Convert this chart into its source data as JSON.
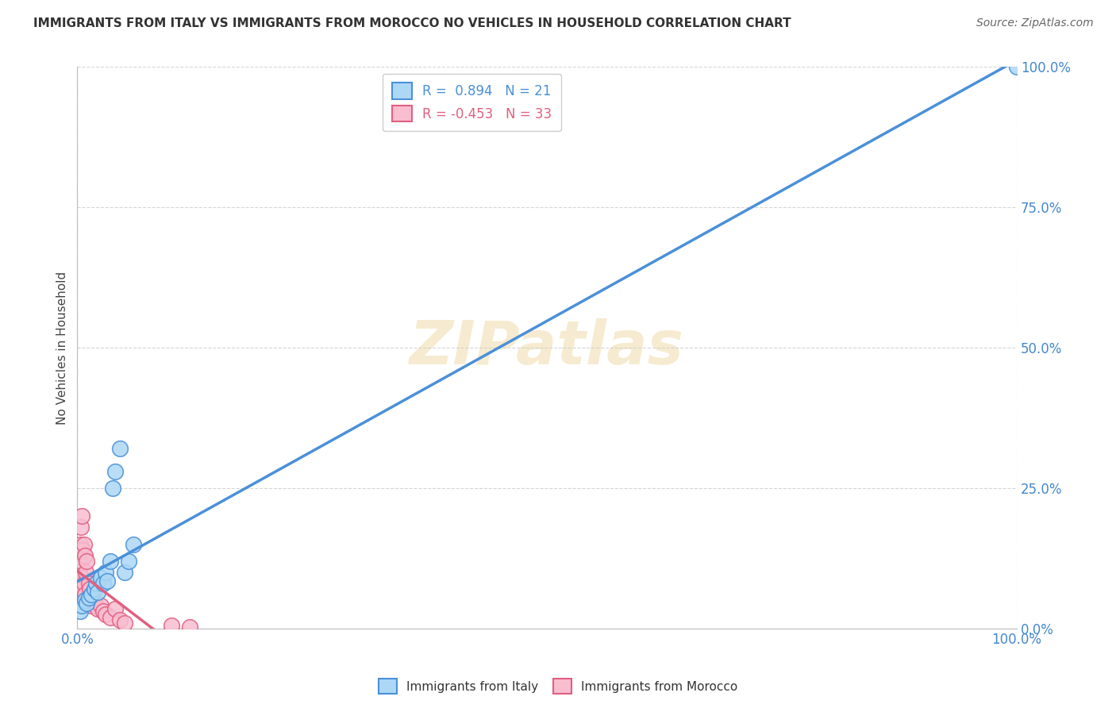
{
  "title": "IMMIGRANTS FROM ITALY VS IMMIGRANTS FROM MOROCCO NO VEHICLES IN HOUSEHOLD CORRELATION CHART",
  "source": "Source: ZipAtlas.com",
  "ylabel": "No Vehicles in Household",
  "legend_italy": "R =  0.894   N = 21",
  "legend_morocco": "R = -0.453   N = 33",
  "legend_bottom_italy": "Immigrants from Italy",
  "legend_bottom_morocco": "Immigrants from Morocco",
  "italy_color": "#add8f5",
  "morocco_color": "#f9bdd0",
  "italy_line_color": "#4a90d9",
  "morocco_line_color": "#e06080",
  "italy_R": 0.894,
  "morocco_R": -0.453,
  "italy_N": 21,
  "morocco_N": 33,
  "italy_points_x": [
    0.3,
    0.5,
    0.8,
    1.0,
    1.2,
    1.5,
    1.8,
    2.0,
    2.2,
    2.5,
    2.8,
    3.0,
    3.2,
    3.5,
    3.8,
    4.0,
    4.5,
    5.0,
    5.5,
    6.0,
    100.0
  ],
  "italy_points_y": [
    3.0,
    4.0,
    5.0,
    4.5,
    5.5,
    6.0,
    7.0,
    8.0,
    6.5,
    9.0,
    8.0,
    10.0,
    8.5,
    12.0,
    25.0,
    28.0,
    32.0,
    10.0,
    12.0,
    15.0,
    100.0
  ],
  "morocco_points_x": [
    0.1,
    0.2,
    0.3,
    0.3,
    0.4,
    0.4,
    0.5,
    0.5,
    0.6,
    0.6,
    0.7,
    0.7,
    0.8,
    0.8,
    0.9,
    1.0,
    1.0,
    1.2,
    1.3,
    1.5,
    1.5,
    1.8,
    2.0,
    2.2,
    2.5,
    2.8,
    3.0,
    3.5,
    4.0,
    4.5,
    5.0,
    10.0,
    12.0
  ],
  "morocco_points_y": [
    12.0,
    10.0,
    15.0,
    8.0,
    18.0,
    12.0,
    20.0,
    9.0,
    14.0,
    7.0,
    15.0,
    8.0,
    13.0,
    6.0,
    10.0,
    12.0,
    5.0,
    8.0,
    7.0,
    6.0,
    4.0,
    5.0,
    4.0,
    3.5,
    4.0,
    3.0,
    2.5,
    2.0,
    3.5,
    1.5,
    1.0,
    0.5,
    0.3
  ],
  "xlim": [
    0,
    100
  ],
  "ylim": [
    0,
    100
  ],
  "ytick_vals": [
    0,
    25,
    50,
    75,
    100
  ],
  "grid_color": "#cccccc",
  "tick_color": "#4488cc",
  "title_fontsize": 11,
  "source_fontsize": 10,
  "watermark_text": "ZIPatlas",
  "watermark_color": "#e8c87a",
  "watermark_alpha": 0.35
}
